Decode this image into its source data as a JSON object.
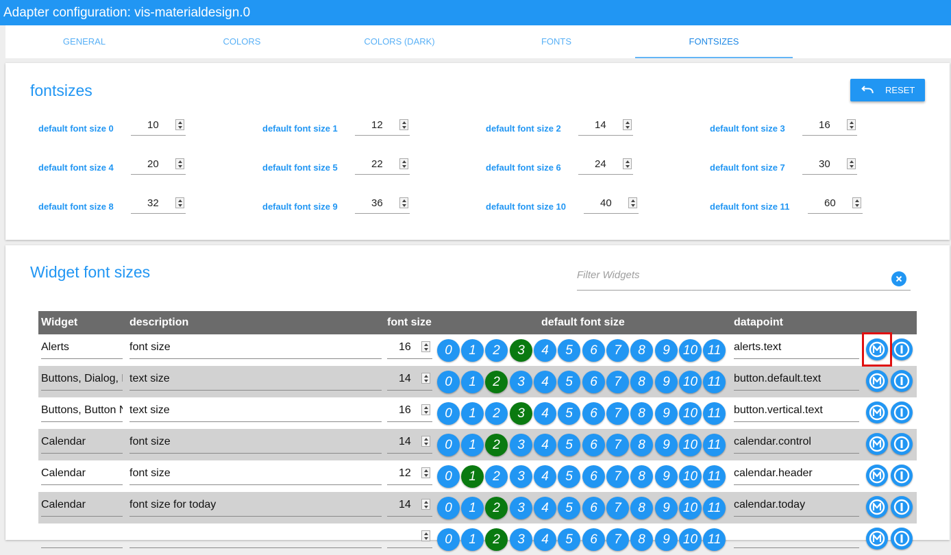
{
  "window": {
    "title": "Adapter configuration: vis-materialdesign.0"
  },
  "tabs": [
    {
      "label": "GENERAL"
    },
    {
      "label": "COLORS"
    },
    {
      "label": "COLORS (DARK)"
    },
    {
      "label": "FONTS"
    },
    {
      "label": "FONTSIZES",
      "active": true
    }
  ],
  "fontsizes": {
    "title": "fontsizes",
    "reset_label": "RESET",
    "items": [
      {
        "label": "default font size 0",
        "value": "10"
      },
      {
        "label": "default font size 1",
        "value": "12"
      },
      {
        "label": "default font size 2",
        "value": "14"
      },
      {
        "label": "default font size 3",
        "value": "16"
      },
      {
        "label": "default font size 4",
        "value": "20"
      },
      {
        "label": "default font size 5",
        "value": "22"
      },
      {
        "label": "default font size 6",
        "value": "24"
      },
      {
        "label": "default font size 7",
        "value": "30"
      },
      {
        "label": "default font size 8",
        "value": "32"
      },
      {
        "label": "default font size 9",
        "value": "36"
      },
      {
        "label": "default font size 10",
        "value": "40"
      },
      {
        "label": "default font size 11",
        "value": "60"
      }
    ]
  },
  "widgets": {
    "title": "Widget font sizes",
    "filter_placeholder": "Filter Widgets",
    "columns": {
      "widget": "Widget",
      "description": "description",
      "font_size": "font size",
      "default_font_size": "default font size",
      "datapoint": "datapoint"
    },
    "default_buttons": [
      "0",
      "1",
      "2",
      "3",
      "4",
      "5",
      "6",
      "7",
      "8",
      "9",
      "10",
      "11"
    ],
    "rows": [
      {
        "widget": "Alerts",
        "description": "font size",
        "font_size": "16",
        "selected": 3,
        "datapoint": "alerts.text"
      },
      {
        "widget": "Buttons, Dialog, Buttons Nav",
        "description": "text size",
        "font_size": "14",
        "selected": 2,
        "datapoint": "button.default.text"
      },
      {
        "widget": "Buttons, Button Nav",
        "description": "text size",
        "font_size": "16",
        "selected": 3,
        "datapoint": "button.vertical.text"
      },
      {
        "widget": "Calendar",
        "description": "font size",
        "font_size": "14",
        "selected": 2,
        "datapoint": "calendar.control"
      },
      {
        "widget": "Calendar",
        "description": "font size",
        "font_size": "12",
        "selected": 1,
        "datapoint": "calendar.header"
      },
      {
        "widget": "Calendar",
        "description": "font size for today",
        "font_size": "14",
        "selected": 2,
        "datapoint": "calendar.today"
      },
      {
        "widget": "",
        "description": "",
        "font_size": "",
        "selected": 2,
        "datapoint": ""
      }
    ]
  },
  "colors": {
    "accent": "#2196f3",
    "selected": "#0a7a10",
    "header": "#6b6b6b",
    "highlight": "#e01010"
  },
  "icons": {
    "reset": "undo-icon",
    "clear": "close-icon",
    "copy": "material-m-icon",
    "info": "info-icon"
  }
}
